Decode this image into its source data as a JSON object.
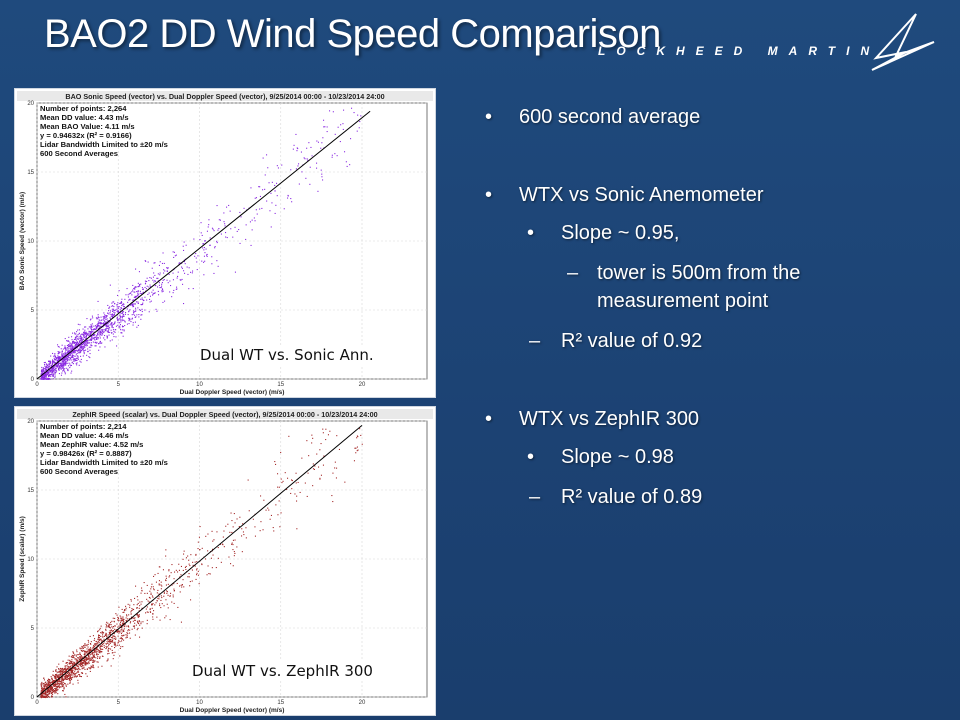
{
  "slide": {
    "title": "BAO2 DD Wind Speed Comparison",
    "logo_text": "LOCKHEED MARTIN",
    "bullets": [
      {
        "text": "600 second average",
        "level": 1
      },
      {
        "text": "WTX vs Sonic Anemometer",
        "level": 1
      },
      {
        "text": "Slope ~ 0.95,",
        "level": 2
      },
      {
        "text": "tower is 500m from the",
        "level": 3
      },
      {
        "text": "measurement point",
        "level": 3
      },
      {
        "text": "R² value of 0.92",
        "level": 2
      },
      {
        "text": "WTX vs ZephIR 300",
        "level": 1
      },
      {
        "text": "Slope ~ 0.98",
        "level": 2
      },
      {
        "text": "R² value of 0.89",
        "level": 2
      }
    ],
    "bullet_glyph": "•",
    "dash_glyph": "–"
  },
  "colors": {
    "background": "#1e4678",
    "sonic_points": "#8a2be2",
    "zephir_points": "#a52a2a",
    "fit_line": "#000000"
  },
  "chart_data": [
    {
      "type": "scatter",
      "title": "BAO Sonic Speed (vector) vs. Dual Doppler Speed (vector), 9/25/2014 00:00 - 10/23/2014 24:00",
      "xlabel": "Dual Doppler Speed (vector) (m/s)",
      "ylabel": "BAO Sonic Speed (vector) (m/s)",
      "xlim": [
        0,
        24
      ],
      "ylim": [
        0,
        20
      ],
      "x_ticks": [
        "0",
        "5",
        "10",
        "15",
        "20"
      ],
      "y_ticks": [
        "0",
        "5",
        "10",
        "15",
        "20"
      ],
      "grid": true,
      "stats": [
        "Number of points: 2,264",
        "Mean DD value: 4.43 m/s",
        "Mean BAO Value: 4.11 m/s",
        "y = 0.94632x (R² = 0.9166)",
        "Lidar Bandwidth Limited to ±20 m/s",
        "600 Second Averages"
      ],
      "fit": {
        "slope": 0.94632,
        "x_range": [
          0,
          20.5
        ]
      },
      "n_points": 2264,
      "point_color": "#8a2be2",
      "caption": "Dual WT vs. Sonic Ann."
    },
    {
      "type": "scatter",
      "title": "ZephIR Speed (scalar) vs. Dual Doppler Speed (vector), 9/25/2014 00:00 - 10/23/2014 24:00",
      "xlabel": "Dual Doppler Speed (vector) (m/s)",
      "ylabel": "ZephIR Speed (scalar) (m/s)",
      "xlim": [
        0,
        24
      ],
      "ylim": [
        0,
        20
      ],
      "x_ticks": [
        "0",
        "5",
        "10",
        "15",
        "20"
      ],
      "y_ticks": [
        "0",
        "5",
        "10",
        "15",
        "20"
      ],
      "grid": true,
      "stats": [
        "Number of points: 2,214",
        "Mean DD value: 4.46 m/s",
        "Mean ZephIR value: 4.52 m/s",
        "y = 0.98426x (R² = 0.8887)",
        "Lidar Bandwidth Limited to ±20 m/s",
        "600 Second Averages"
      ],
      "fit": {
        "slope": 0.98426,
        "x_range": [
          0,
          20
        ]
      },
      "n_points": 2214,
      "point_color": "#a52a2a",
      "caption": "Dual WT vs. ZephIR 300"
    }
  ]
}
